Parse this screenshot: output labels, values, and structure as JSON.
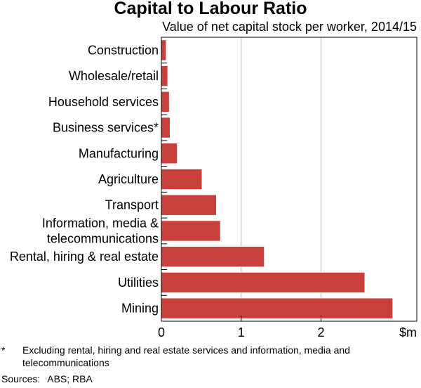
{
  "chart_data": {
    "type": "bar",
    "orientation": "horizontal",
    "title": "Capital to Labour Ratio",
    "subtitle": "Value of net capital stock per worker, 2014/15",
    "categories": [
      [
        "Construction"
      ],
      [
        "Wholesale/retail"
      ],
      [
        "Household services"
      ],
      [
        "Business services*"
      ],
      [
        "Manufacturing"
      ],
      [
        "Agriculture"
      ],
      [
        "Transport"
      ],
      [
        "Information, media &",
        "telecommunications"
      ],
      [
        "Rental, hiring & real estate"
      ],
      [
        "Utilities"
      ],
      [
        "Mining"
      ]
    ],
    "values": [
      0.06,
      0.08,
      0.1,
      0.11,
      0.2,
      0.51,
      0.69,
      0.74,
      1.29,
      2.55,
      2.9
    ],
    "xlim": [
      0,
      3.2
    ],
    "xticks": [
      0,
      1,
      2
    ],
    "xtick_labels": [
      "0",
      "1",
      "2"
    ],
    "xunit_label": "$m",
    "xlabel": "",
    "ylabel": "",
    "grid": true,
    "bar_color": "#c8403c"
  },
  "footnote": {
    "marker": "*",
    "text": "Excluding rental, hiring and real estate services and information, media and telecommunications"
  },
  "sources": {
    "label": "Sources:",
    "text": "ABS; RBA"
  }
}
